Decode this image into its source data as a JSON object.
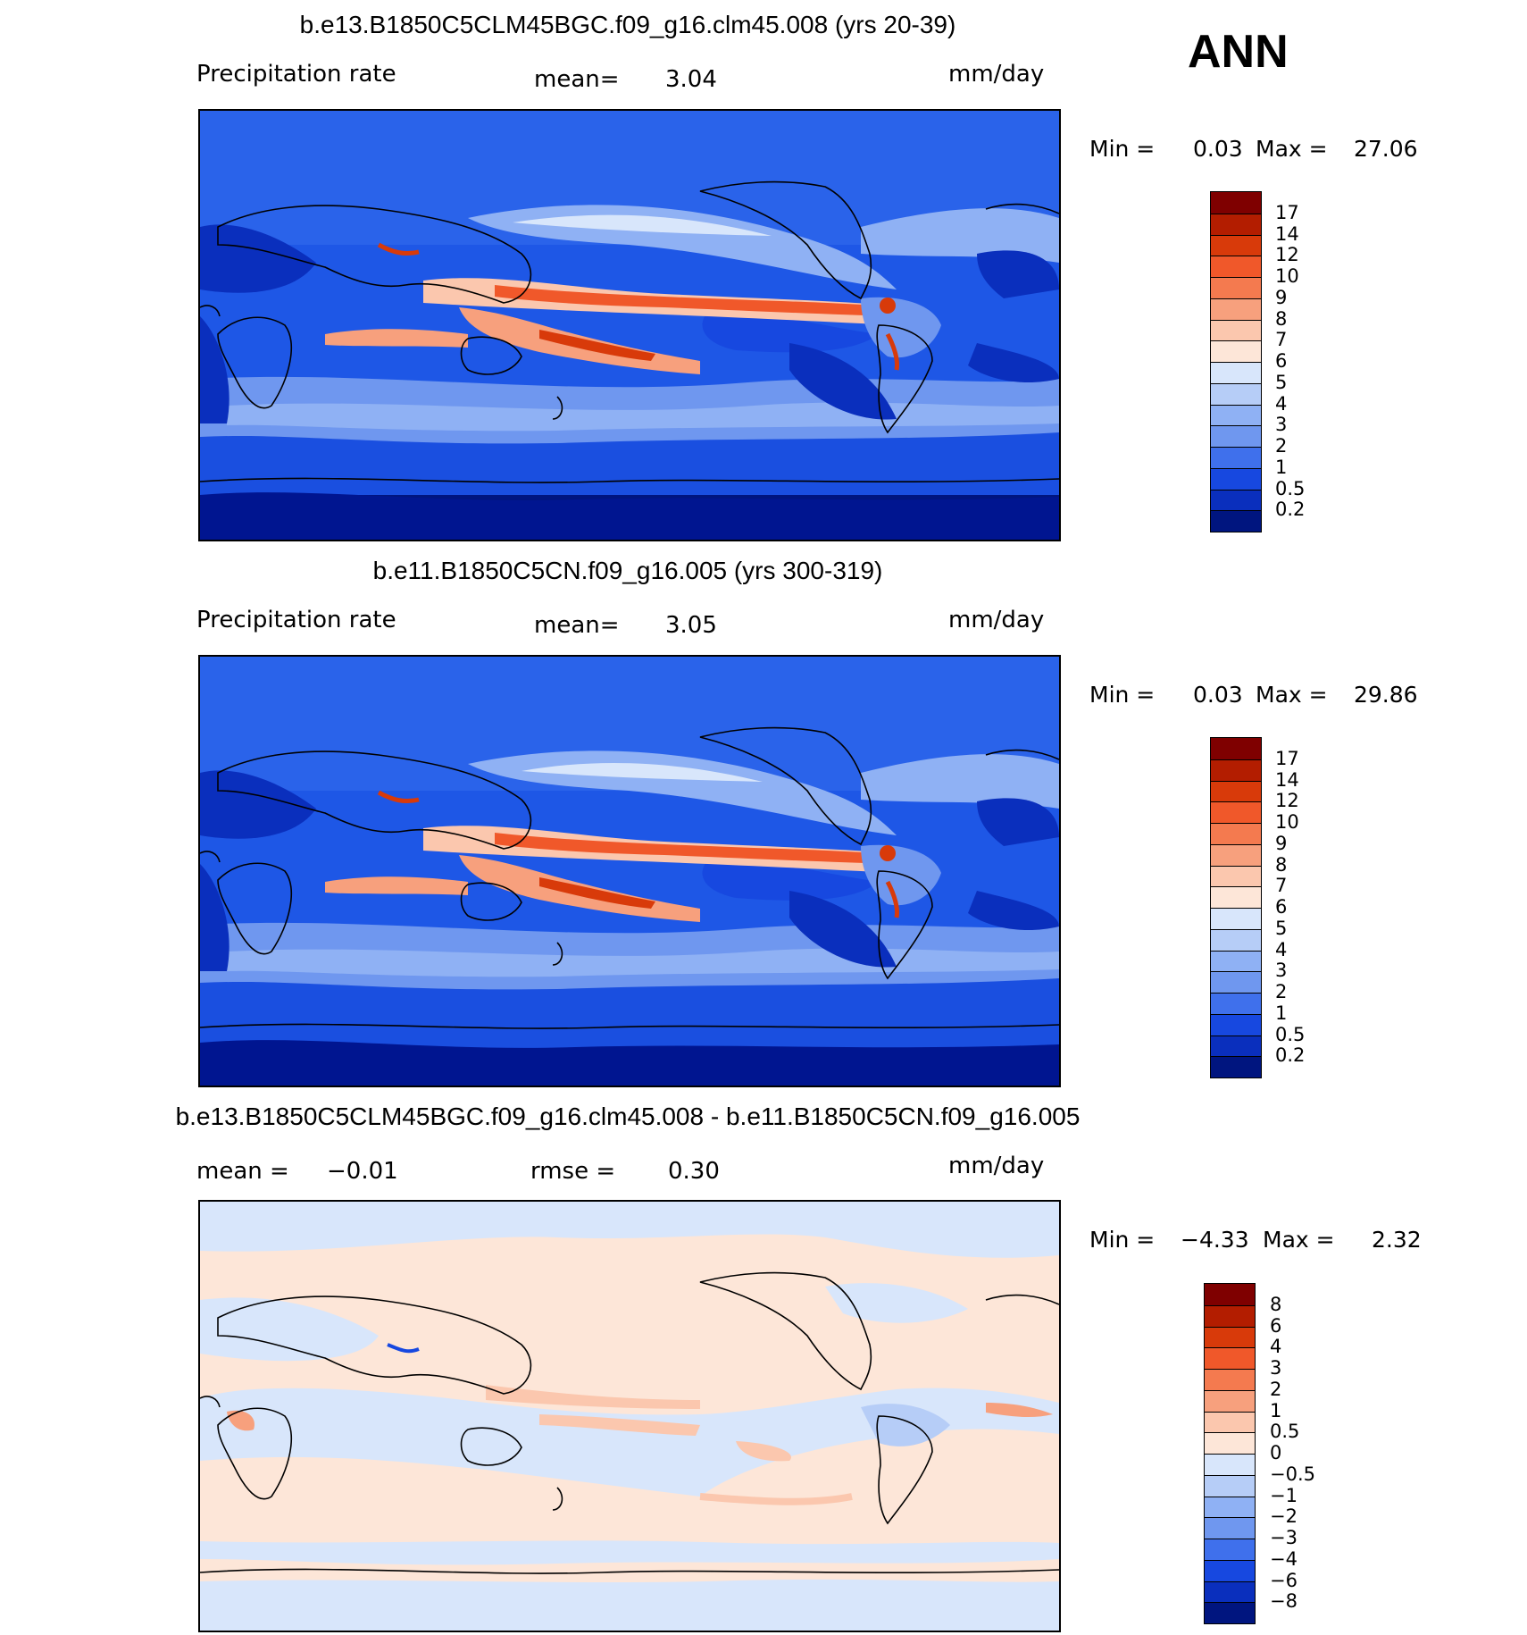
{
  "season_label": "ANN",
  "panels": [
    {
      "title": "b.e13.B1850C5CLM45BGC.f09_g16.clm45.008 (yrs 20-39)",
      "left_label": "Precipitation  rate",
      "mid_label": "mean=",
      "mid_value": "3.04",
      "units": "mm/day",
      "min_label": "Min  =",
      "min_value": "0.03",
      "max_label": "Max  =",
      "max_value": "27.06"
    },
    {
      "title": "b.e11.B1850C5CN.f09_g16.005 (yrs 300-319)",
      "left_label": "Precipitation  rate",
      "mid_label": "mean=",
      "mid_value": "3.05",
      "units": "mm/day",
      "min_label": "Min  =",
      "min_value": "0.03",
      "max_label": "Max  =",
      "max_value": "29.86"
    },
    {
      "title": "b.e13.B1850C5CLM45BGC.f09_g16.clm45.008 - b.e11.B1850C5CN.f09_g16.005",
      "left_label": "mean  =",
      "left_value": "−0.01",
      "mid_label": "rmse  =",
      "mid_value": "0.30",
      "units": "mm/day",
      "min_label": "Min  =",
      "min_value": "−4.33",
      "max_label": "Max  =",
      "max_value": "2.32"
    }
  ],
  "colorbars": {
    "precip": {
      "labels": [
        "17",
        "14",
        "12",
        "10",
        "9",
        "8",
        "7",
        "6",
        "5",
        "4",
        "3",
        "2",
        "1",
        "0.5",
        "0.2"
      ],
      "colors": [
        "#7f0000",
        "#b31d00",
        "#d83a0a",
        "#f0582a",
        "#f47a4f",
        "#f7a07d",
        "#fbc7ae",
        "#fde6d8",
        "#d8e6fb",
        "#b6cdf7",
        "#8fb1f4",
        "#6f97ef",
        "#3f70ec",
        "#1748e0",
        "#0a2fbd",
        "#00157f"
      ]
    },
    "diff": {
      "labels": [
        "8",
        "6",
        "4",
        "3",
        "2",
        "1",
        "0.5",
        "0",
        "−0.5",
        "−1",
        "−2",
        "−3",
        "−4",
        "−6",
        "−8"
      ],
      "colors": [
        "#7f0000",
        "#b31d00",
        "#d83a0a",
        "#f0582a",
        "#f47a4f",
        "#f7a07d",
        "#fbc7ae",
        "#fde6d8",
        "#d8e6fb",
        "#b6cdf7",
        "#8fb1f4",
        "#6f97ef",
        "#3f70ec",
        "#1748e0",
        "#0a2fbd",
        "#00157f"
      ]
    }
  }
}
